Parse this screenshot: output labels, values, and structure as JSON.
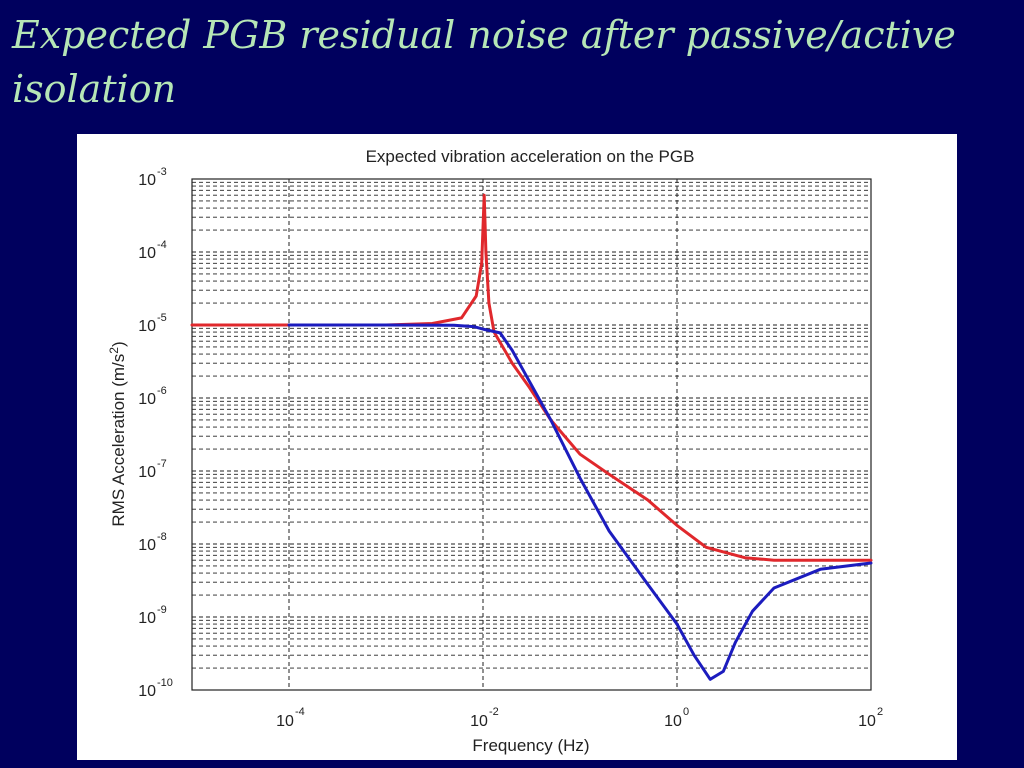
{
  "slide": {
    "title": "Expected PGB residual noise after passive/active isolation"
  },
  "colors": {
    "background": "#00005e",
    "title_text": "#b6e6b6",
    "panel": "#ffffff",
    "passive_series": "#e0282c",
    "active_series": "#1c1cbe",
    "grid": "#222222"
  },
  "chart_data": {
    "type": "line",
    "title": "Expected vibration acceleration on the PGB",
    "xlabel": "Frequency (Hz)",
    "ylabel": "RMS Acceleration (m/s2)",
    "x_scale": "log",
    "y_scale": "log",
    "xlim": [
      1e-05,
      100
    ],
    "ylim": [
      1e-10,
      0.001
    ],
    "x_ticks": [
      {
        "base": "10",
        "exp": "-4",
        "value": 0.0001
      },
      {
        "base": "10",
        "exp": "-2",
        "value": 0.01
      },
      {
        "base": "10",
        "exp": "0",
        "value": 1
      },
      {
        "base": "10",
        "exp": "2",
        "value": 100
      }
    ],
    "y_ticks": [
      {
        "base": "10",
        "exp": "-3",
        "value": 0.001
      },
      {
        "base": "10",
        "exp": "-4",
        "value": 0.0001
      },
      {
        "base": "10",
        "exp": "-5",
        "value": 1e-05
      },
      {
        "base": "10",
        "exp": "-6",
        "value": 1e-06
      },
      {
        "base": "10",
        "exp": "-7",
        "value": 1e-07
      },
      {
        "base": "10",
        "exp": "-8",
        "value": 1e-08
      },
      {
        "base": "10",
        "exp": "-9",
        "value": 1e-09
      },
      {
        "base": "10",
        "exp": "-10",
        "value": 1e-10
      }
    ],
    "grid": true,
    "legend": false,
    "series": [
      {
        "color": "#e0282c",
        "points": [
          [
            1e-05,
            1e-05
          ],
          [
            0.001,
            1e-05
          ],
          [
            0.003,
            1.05e-05
          ],
          [
            0.006,
            1.25e-05
          ],
          [
            0.0085,
            2.5e-05
          ],
          [
            0.0097,
            7e-05
          ],
          [
            0.0103,
            0.0006
          ],
          [
            0.0107,
            0.0001
          ],
          [
            0.0115,
            2e-05
          ],
          [
            0.013,
            8e-06
          ],
          [
            0.016,
            5e-06
          ],
          [
            0.02,
            3e-06
          ],
          [
            0.03,
            1.4e-06
          ],
          [
            0.05,
            5e-07
          ],
          [
            0.1,
            1.7e-07
          ],
          [
            0.2,
            9e-08
          ],
          [
            0.5,
            4e-08
          ],
          [
            1,
            1.8e-08
          ],
          [
            2,
            9e-09
          ],
          [
            5,
            6.5e-09
          ],
          [
            10,
            6e-09
          ],
          [
            100,
            6e-09
          ]
        ]
      },
      {
        "color": "#1c1cbe",
        "points": [
          [
            0.0001,
            1e-05
          ],
          [
            0.001,
            1e-05
          ],
          [
            0.005,
            9.9e-06
          ],
          [
            0.008,
            9.5e-06
          ],
          [
            0.01,
            8.8e-06
          ],
          [
            0.015,
            7.8e-06
          ],
          [
            0.02,
            4.5e-06
          ],
          [
            0.03,
            1.7e-06
          ],
          [
            0.05,
            5e-07
          ],
          [
            0.1,
            8e-08
          ],
          [
            0.2,
            1.5e-08
          ],
          [
            0.5,
            2.8e-09
          ],
          [
            1,
            8e-10
          ],
          [
            1.5,
            3e-10
          ],
          [
            2.2,
            1.4e-10
          ],
          [
            3,
            1.8e-10
          ],
          [
            4,
            4.5e-10
          ],
          [
            6,
            1.2e-09
          ],
          [
            10,
            2.5e-09
          ],
          [
            30,
            4.5e-09
          ],
          [
            100,
            5.5e-09
          ]
        ]
      }
    ]
  }
}
